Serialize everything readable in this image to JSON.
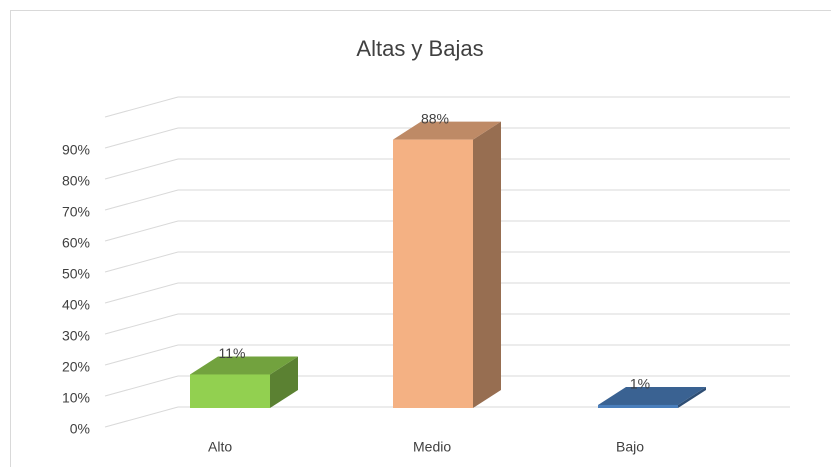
{
  "chart_data": {
    "type": "bar3d",
    "title": "Altas y Bajas",
    "categories": [
      "Alto",
      "Medio",
      "Bajo"
    ],
    "values": [
      11,
      88,
      1
    ],
    "value_labels": [
      "11%",
      "88%",
      "1%"
    ],
    "colors": [
      "#92d050",
      "#f4b183",
      "#4a7ebb"
    ],
    "ylim": [
      0,
      100
    ],
    "yticks": [
      {
        "value": 0,
        "label": "0%"
      },
      {
        "value": 10,
        "label": "10%"
      },
      {
        "value": 20,
        "label": "20%"
      },
      {
        "value": 30,
        "label": "30%"
      },
      {
        "value": 40,
        "label": "40%"
      },
      {
        "value": 50,
        "label": "50%"
      },
      {
        "value": 60,
        "label": "60%"
      },
      {
        "value": 70,
        "label": "70%"
      },
      {
        "value": 80,
        "label": "80%"
      },
      {
        "value": 90,
        "label": "90%"
      }
    ],
    "grid": true
  }
}
